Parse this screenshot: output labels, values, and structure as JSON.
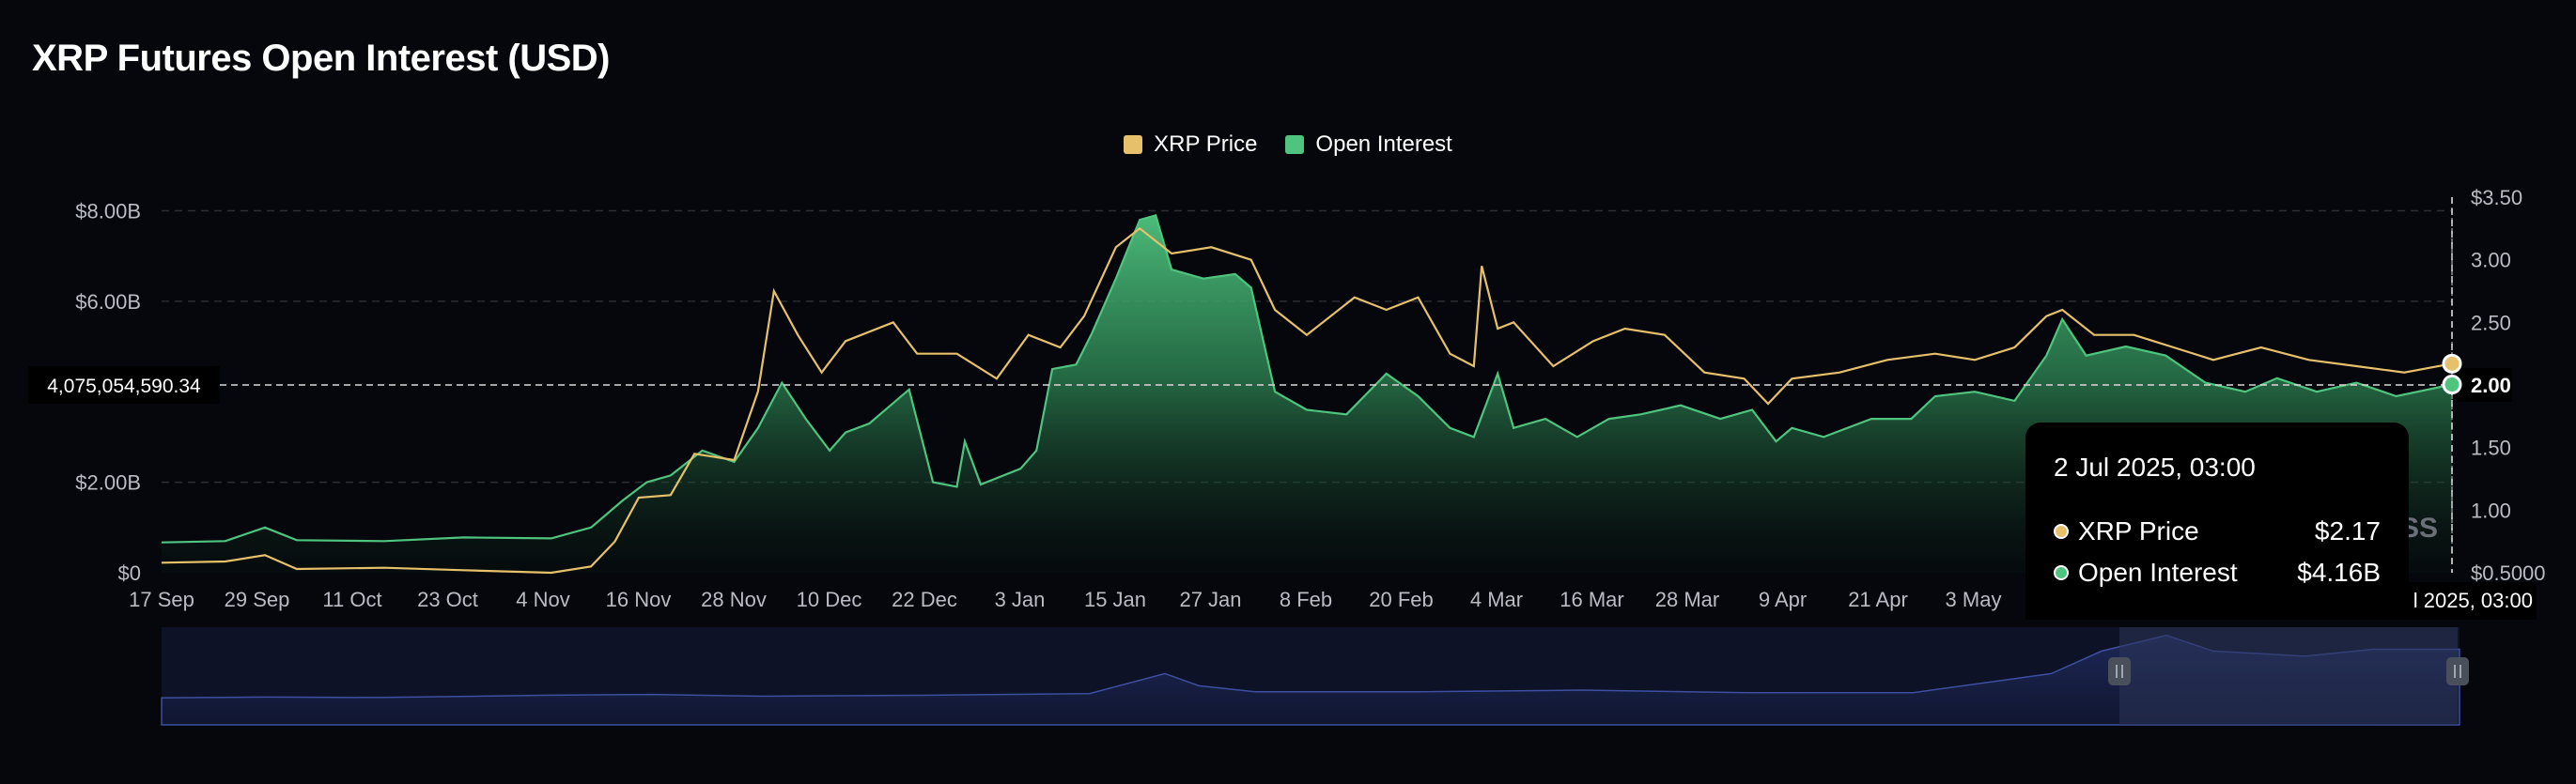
{
  "title": "XRP Futures Open Interest (USD)",
  "legend": [
    {
      "label": "XRP Price",
      "color": "#e6c06a"
    },
    {
      "label": "Open Interest",
      "color": "#4fc47f"
    }
  ],
  "crosshair_label": "4,075,054,590.34",
  "watermark": "SS",
  "tooltip": {
    "date": "2 Jul 2025, 03:00",
    "rows": [
      {
        "label": "XRP Price",
        "value": "$2.17",
        "color": "#e6c06a"
      },
      {
        "label": "Open Interest",
        "value": "$4.16B",
        "color": "#4fc47f"
      }
    ],
    "axis_label": "l 2025, 03:00"
  },
  "chart_data": {
    "type": "area",
    "title": "XRP Futures Open Interest (USD)",
    "x_ticks": [
      "17 Sep",
      "29 Sep",
      "11 Oct",
      "23 Oct",
      "4 Nov",
      "16 Nov",
      "28 Nov",
      "10 Dec",
      "22 Dec",
      "3 Jan",
      "15 Jan",
      "27 Jan",
      "8 Feb",
      "20 Feb",
      "4 Mar",
      "16 Mar",
      "28 Mar",
      "9 Apr",
      "21 Apr",
      "3 May"
    ],
    "x_start": "2024-09-17",
    "x_end": "2025-07-02",
    "y_left": {
      "ticks": [
        "$0",
        "$2.00B",
        "$6.00B",
        "$8.00B"
      ],
      "tick_values": [
        0,
        2,
        6,
        8
      ],
      "unit": "USD billions",
      "range": [
        0,
        8.3
      ]
    },
    "y_right": {
      "ticks": [
        "$0.5000",
        "1.00",
        "1.50",
        "2.00",
        "2.50",
        "3.00",
        "$3.50"
      ],
      "tick_values": [
        0.5,
        1.0,
        1.5,
        2.0,
        2.5,
        3.0,
        3.5
      ],
      "range": [
        0.5,
        3.5
      ]
    },
    "grid": true,
    "legend_position": "top-center",
    "series": [
      {
        "name": "Open Interest",
        "axis": "left",
        "color": "#4fc47f",
        "points": [
          [
            "2024-09-17",
            0.67
          ],
          [
            "2024-09-25",
            0.7
          ],
          [
            "2024-09-30",
            1.0
          ],
          [
            "2024-10-04",
            0.72
          ],
          [
            "2024-10-15",
            0.7
          ],
          [
            "2024-10-25",
            0.78
          ],
          [
            "2024-11-05",
            0.76
          ],
          [
            "2024-11-10",
            1.0
          ],
          [
            "2024-11-14",
            1.6
          ],
          [
            "2024-11-17",
            2.0
          ],
          [
            "2024-11-20",
            2.15
          ],
          [
            "2024-11-24",
            2.7
          ],
          [
            "2024-11-28",
            2.45
          ],
          [
            "2024-12-01",
            3.2
          ],
          [
            "2024-12-04",
            4.2
          ],
          [
            "2024-12-07",
            3.4
          ],
          [
            "2024-12-10",
            2.7
          ],
          [
            "2024-12-12",
            3.1
          ],
          [
            "2024-12-15",
            3.3
          ],
          [
            "2024-12-20",
            4.05
          ],
          [
            "2024-12-23",
            2.0
          ],
          [
            "2024-12-26",
            1.9
          ],
          [
            "2024-12-27",
            2.9
          ],
          [
            "2024-12-29",
            1.95
          ],
          [
            "2025-01-03",
            2.3
          ],
          [
            "2025-01-05",
            2.7
          ],
          [
            "2025-01-07",
            4.5
          ],
          [
            "2025-01-10",
            4.6
          ],
          [
            "2025-01-12",
            5.3
          ],
          [
            "2025-01-15",
            6.5
          ],
          [
            "2025-01-18",
            7.8
          ],
          [
            "2025-01-20",
            7.9
          ],
          [
            "2025-01-22",
            6.7
          ],
          [
            "2025-01-26",
            6.5
          ],
          [
            "2025-01-30",
            6.6
          ],
          [
            "2025-02-01",
            6.3
          ],
          [
            "2025-02-04",
            4.0
          ],
          [
            "2025-02-08",
            3.6
          ],
          [
            "2025-02-13",
            3.5
          ],
          [
            "2025-02-18",
            4.4
          ],
          [
            "2025-02-22",
            3.9
          ],
          [
            "2025-02-26",
            3.2
          ],
          [
            "2025-03-01",
            3.0
          ],
          [
            "2025-03-04",
            4.4
          ],
          [
            "2025-03-06",
            3.2
          ],
          [
            "2025-03-10",
            3.4
          ],
          [
            "2025-03-14",
            3.0
          ],
          [
            "2025-03-18",
            3.4
          ],
          [
            "2025-03-22",
            3.5
          ],
          [
            "2025-03-27",
            3.7
          ],
          [
            "2025-04-01",
            3.4
          ],
          [
            "2025-04-05",
            3.6
          ],
          [
            "2025-04-08",
            2.9
          ],
          [
            "2025-04-10",
            3.2
          ],
          [
            "2025-04-14",
            3.0
          ],
          [
            "2025-04-20",
            3.4
          ],
          [
            "2025-04-25",
            3.4
          ],
          [
            "2025-04-28",
            3.9
          ],
          [
            "2025-05-03",
            4.0
          ],
          [
            "2025-05-08",
            3.8
          ],
          [
            "2025-05-12",
            4.8
          ],
          [
            "2025-05-14",
            5.6
          ],
          [
            "2025-05-17",
            4.8
          ],
          [
            "2025-05-22",
            5.0
          ],
          [
            "2025-05-27",
            4.8
          ],
          [
            "2025-06-01",
            4.2
          ],
          [
            "2025-06-06",
            4.0
          ],
          [
            "2025-06-10",
            4.3
          ],
          [
            "2025-06-15",
            4.0
          ],
          [
            "2025-06-20",
            4.2
          ],
          [
            "2025-06-25",
            3.9
          ],
          [
            "2025-07-02",
            4.16
          ]
        ]
      },
      {
        "name": "XRP Price",
        "axis": "right",
        "color": "#e6c06a",
        "points": [
          [
            "2024-09-17",
            0.58
          ],
          [
            "2024-09-25",
            0.59
          ],
          [
            "2024-09-30",
            0.64
          ],
          [
            "2024-10-04",
            0.53
          ],
          [
            "2024-10-15",
            0.54
          ],
          [
            "2024-10-25",
            0.52
          ],
          [
            "2024-11-05",
            0.5
          ],
          [
            "2024-11-10",
            0.55
          ],
          [
            "2024-11-13",
            0.75
          ],
          [
            "2024-11-16",
            1.1
          ],
          [
            "2024-11-20",
            1.12
          ],
          [
            "2024-11-23",
            1.45
          ],
          [
            "2024-11-28",
            1.4
          ],
          [
            "2024-12-01",
            1.95
          ],
          [
            "2024-12-03",
            2.75
          ],
          [
            "2024-12-06",
            2.4
          ],
          [
            "2024-12-09",
            2.1
          ],
          [
            "2024-12-12",
            2.35
          ],
          [
            "2024-12-18",
            2.5
          ],
          [
            "2024-12-21",
            2.25
          ],
          [
            "2024-12-26",
            2.25
          ],
          [
            "2024-12-31",
            2.05
          ],
          [
            "2025-01-04",
            2.4
          ],
          [
            "2025-01-08",
            2.3
          ],
          [
            "2025-01-11",
            2.55
          ],
          [
            "2025-01-15",
            3.1
          ],
          [
            "2025-01-18",
            3.25
          ],
          [
            "2025-01-22",
            3.05
          ],
          [
            "2025-01-27",
            3.1
          ],
          [
            "2025-02-01",
            3.0
          ],
          [
            "2025-02-04",
            2.6
          ],
          [
            "2025-02-08",
            2.4
          ],
          [
            "2025-02-14",
            2.7
          ],
          [
            "2025-02-18",
            2.6
          ],
          [
            "2025-02-22",
            2.7
          ],
          [
            "2025-02-26",
            2.25
          ],
          [
            "2025-03-01",
            2.15
          ],
          [
            "2025-03-02",
            2.95
          ],
          [
            "2025-03-04",
            2.45
          ],
          [
            "2025-03-06",
            2.5
          ],
          [
            "2025-03-11",
            2.15
          ],
          [
            "2025-03-16",
            2.35
          ],
          [
            "2025-03-20",
            2.45
          ],
          [
            "2025-03-25",
            2.4
          ],
          [
            "2025-03-30",
            2.1
          ],
          [
            "2025-04-04",
            2.05
          ],
          [
            "2025-04-07",
            1.85
          ],
          [
            "2025-04-10",
            2.05
          ],
          [
            "2025-04-16",
            2.1
          ],
          [
            "2025-04-22",
            2.2
          ],
          [
            "2025-04-28",
            2.25
          ],
          [
            "2025-05-03",
            2.2
          ],
          [
            "2025-05-08",
            2.3
          ],
          [
            "2025-05-12",
            2.55
          ],
          [
            "2025-05-14",
            2.6
          ],
          [
            "2025-05-18",
            2.4
          ],
          [
            "2025-05-23",
            2.4
          ],
          [
            "2025-05-28",
            2.3
          ],
          [
            "2025-06-02",
            2.2
          ],
          [
            "2025-06-08",
            2.3
          ],
          [
            "2025-06-14",
            2.2
          ],
          [
            "2025-06-20",
            2.15
          ],
          [
            "2025-06-26",
            2.1
          ],
          [
            "2025-07-02",
            2.17
          ]
        ]
      }
    ],
    "navigator": {
      "range_start": "2025-05-07",
      "range_end": "2025-07-02",
      "points": [
        [
          "2022-01-01",
          0.2
        ],
        [
          "2022-03-01",
          0.25
        ],
        [
          "2022-05-01",
          0.22
        ],
        [
          "2022-08-01",
          0.35
        ],
        [
          "2022-10-01",
          0.4
        ],
        [
          "2022-12-01",
          0.3
        ],
        [
          "2023-03-01",
          0.35
        ],
        [
          "2023-06-01",
          0.45
        ],
        [
          "2023-07-13",
          1.6
        ],
        [
          "2023-08-01",
          0.9
        ],
        [
          "2023-09-01",
          0.55
        ],
        [
          "2023-12-01",
          0.55
        ],
        [
          "2024-03-01",
          0.65
        ],
        [
          "2024-06-01",
          0.5
        ],
        [
          "2024-09-01",
          0.5
        ],
        [
          "2024-11-17",
          1.6
        ],
        [
          "2024-12-15",
          2.9
        ],
        [
          "2025-01-20",
          3.8
        ],
        [
          "2025-02-15",
          2.9
        ],
        [
          "2025-04-07",
          2.6
        ],
        [
          "2025-05-15",
          3.0
        ],
        [
          "2025-07-02",
          3.0
        ]
      ]
    }
  }
}
